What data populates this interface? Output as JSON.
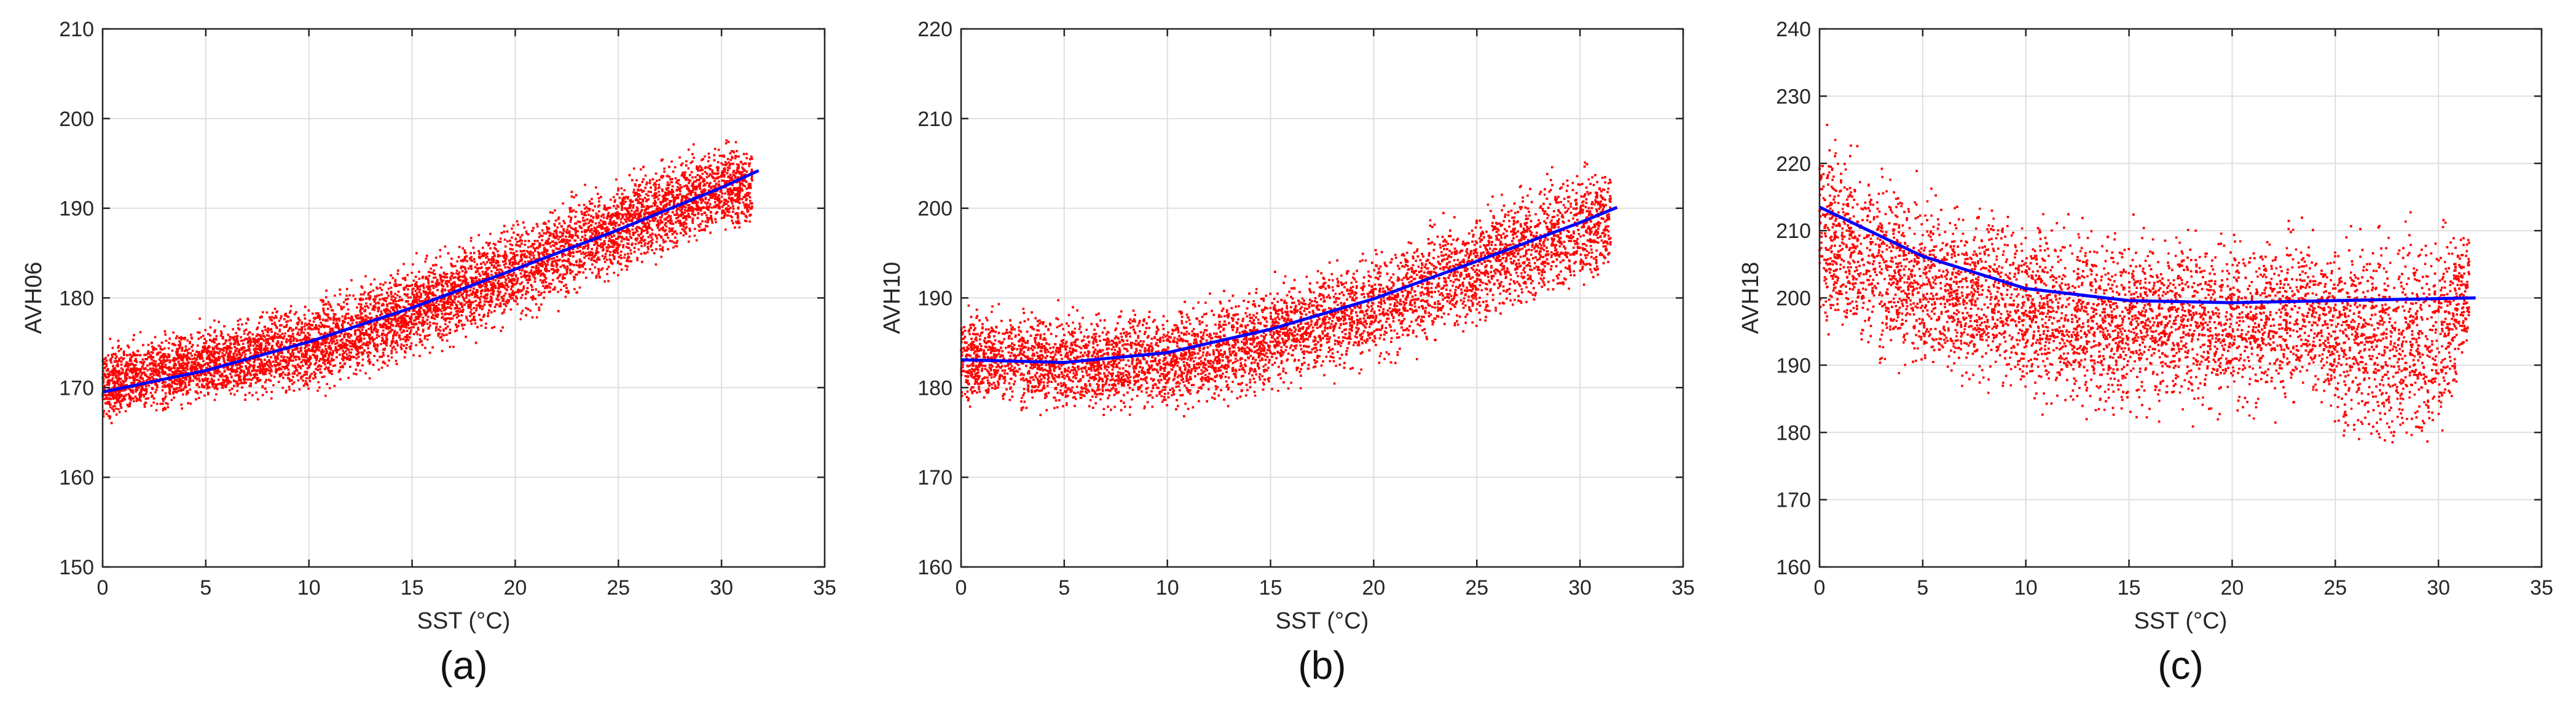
{
  "chart_data": [
    {
      "type": "scatter",
      "caption": "(a)",
      "xlabel": "SST (°C)",
      "ylabel": "AVH06",
      "xlim": [
        0,
        35
      ],
      "ylim": [
        150,
        210
      ],
      "xticks": [
        0,
        5,
        10,
        15,
        20,
        25,
        30,
        35
      ],
      "yticks": [
        150,
        160,
        170,
        180,
        190,
        200,
        210
      ],
      "grid": true,
      "scatter_color": "#ff0000",
      "fit_color": "#0000ff",
      "scatter_band": {
        "x": [
          0,
          5,
          10,
          15,
          20,
          25,
          30,
          31.5
        ],
        "y_min": [
          165,
          167,
          168,
          172,
          176,
          181,
          186,
          186
        ],
        "y_max": [
          176,
          178,
          181,
          185,
          190,
          195,
          199,
          198
        ]
      },
      "series": [
        {
          "kind": "fit",
          "x": [
            0,
            5,
            10,
            15,
            20,
            25,
            30,
            31.8
          ],
          "y": [
            169.5,
            171.9,
            175.1,
            178.9,
            183.2,
            187.6,
            192.3,
            194.2
          ]
        }
      ]
    },
    {
      "type": "scatter",
      "caption": "(b)",
      "xlabel": "SST (°C)",
      "ylabel": "AVH10",
      "xlim": [
        0,
        35
      ],
      "ylim": [
        160,
        220
      ],
      "xticks": [
        0,
        5,
        10,
        15,
        20,
        25,
        30,
        35
      ],
      "yticks": [
        160,
        170,
        180,
        190,
        200,
        210,
        220
      ],
      "grid": true,
      "scatter_color": "#ff0000",
      "fit_color": "#0000ff",
      "scatter_band": {
        "x": [
          0,
          5,
          10,
          15,
          20,
          25,
          30,
          31.5
        ],
        "y_min": [
          177,
          175,
          176,
          178,
          181,
          185,
          189,
          191
        ],
        "y_max": [
          190,
          190,
          190,
          193,
          197,
          202,
          207,
          206
        ]
      },
      "series": [
        {
          "kind": "fit",
          "x": [
            0,
            5,
            10,
            15,
            20,
            25,
            30,
            31.8
          ],
          "y": [
            183.1,
            182.8,
            183.9,
            186.5,
            189.9,
            194.1,
            198.4,
            200.1
          ]
        }
      ]
    },
    {
      "type": "scatter",
      "caption": "(c)",
      "xlabel": "SST (°C)",
      "ylabel": "AVH18",
      "xlim": [
        0,
        35
      ],
      "ylim": [
        160,
        240
      ],
      "xticks": [
        0,
        5,
        10,
        15,
        20,
        25,
        30,
        35
      ],
      "yticks": [
        160,
        170,
        180,
        190,
        200,
        210,
        220,
        230,
        240
      ],
      "grid": true,
      "scatter_color": "#ff0000",
      "fit_color": "#0000ff",
      "scatter_band": {
        "x": [
          0,
          2,
          5,
          10,
          15,
          20,
          24.5,
          25.5,
          28,
          30,
          31.5
        ],
        "y_min": [
          193,
          187,
          184,
          182,
          179,
          180,
          181,
          174,
          172,
          173,
          190
        ],
        "y_max": [
          229,
          224,
          219,
          215,
          213,
          213,
          214,
          214,
          215,
          216,
          213
        ]
      },
      "series": [
        {
          "kind": "fit",
          "x": [
            0,
            5,
            10,
            15,
            20,
            25,
            30,
            31.8
          ],
          "y": [
            213.5,
            206.2,
            201.4,
            199.6,
            199.3,
            199.6,
            199.9,
            200.0
          ]
        }
      ]
    }
  ]
}
